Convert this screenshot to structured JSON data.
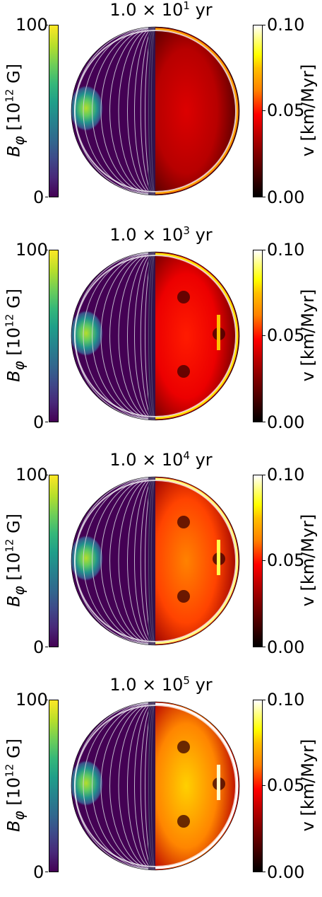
{
  "panels": [
    {
      "title_mantissa": "1.0 × 10",
      "title_exp": "1",
      "title_unit": " yr",
      "velocity_level": 0.35
    },
    {
      "title_mantissa": "1.0 × 10",
      "title_exp": "3",
      "title_unit": " yr",
      "velocity_level": 0.45
    },
    {
      "title_mantissa": "1.0 × 10",
      "title_exp": "4",
      "title_unit": " yr",
      "velocity_level": 0.62
    },
    {
      "title_mantissa": "1.0 × 10",
      "title_exp": "5",
      "title_unit": " yr",
      "velocity_level": 0.75
    }
  ],
  "left_colorbar": {
    "label_main": "B",
    "label_sub": "φ",
    "label_pre": " [10",
    "label_exp": "12",
    "label_post": " G]",
    "tick_max": "100",
    "tick_min": "0",
    "colormap": "viridis"
  },
  "right_colorbar": {
    "label": "v [km/Myr]",
    "tick_max": "0.10",
    "tick_mid": "0.05",
    "tick_min": "0.00",
    "colormap": "hot"
  }
}
